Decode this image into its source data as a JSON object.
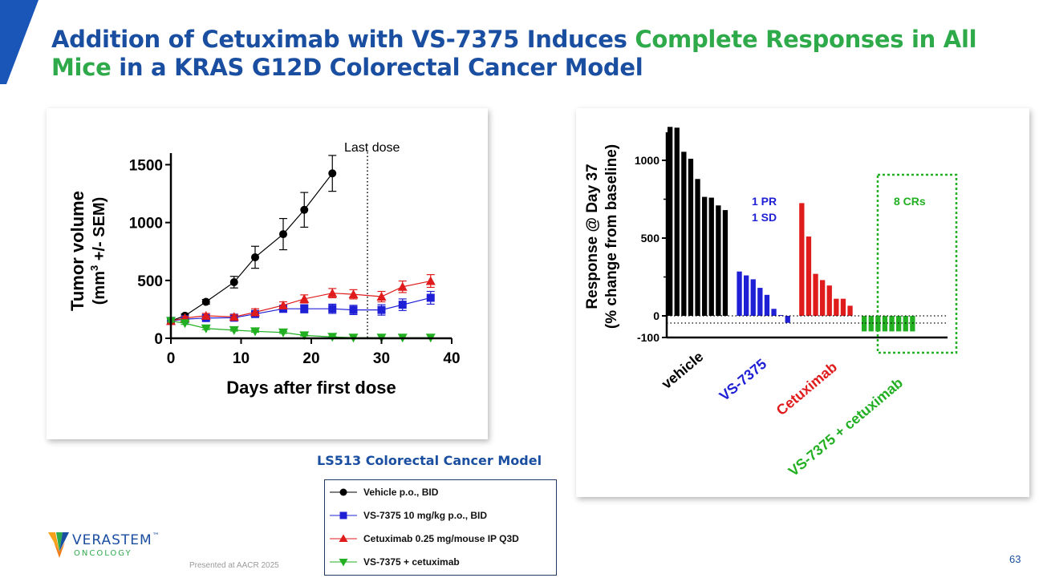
{
  "slide": {
    "title_part1": "Addition of Cetuximab with VS-7375 Induces ",
    "title_highlight1": "Complete Responses in All",
    "title_highlight2": "Mice",
    "title_part2": " in a KRAS G12D Colorectal Cancer Model",
    "model_label": "LS513 Colorectal Cancer Model",
    "footnote": "Presented at AACR 2025",
    "page_number": "63",
    "logo": {
      "name": "VERASTEM",
      "sub": "ONCOLOGY",
      "trademark": "™"
    },
    "colors": {
      "title_blue": "#1a4ea0",
      "title_green": "#2eaa4a"
    }
  },
  "legend": {
    "items": [
      {
        "label": "Vehicle p.o., BID",
        "color": "#000000",
        "marker": "circle"
      },
      {
        "label": "VS-7375 10 mg/kg p.o., BID",
        "color": "#1f1fd6",
        "marker": "square"
      },
      {
        "label": "Cetuximab 0.25 mg/mouse IP Q3D",
        "color": "#e01b1b",
        "marker": "triangle-up"
      },
      {
        "label": "VS-7375 + cetuximab",
        "color": "#22b022",
        "marker": "triangle-down"
      }
    ]
  },
  "chart_data": [
    {
      "type": "line",
      "title": "",
      "xlabel": "Days after first dose",
      "ylabel_line1": "Tumor volume",
      "ylabel_line2": "(mm",
      "ylabel_sup": "3",
      "ylabel_line2_end": " +/- SEM)",
      "xlim": [
        0,
        40
      ],
      "ylim": [
        0,
        1600
      ],
      "xticks": [
        0,
        10,
        20,
        30,
        40
      ],
      "yticks": [
        0,
        500,
        1000,
        1500
      ],
      "annotation": {
        "text": "Last dose",
        "x": 28
      },
      "series": [
        {
          "name": "Vehicle p.o., BID",
          "color": "#000000",
          "marker": "circle",
          "x": [
            0,
            2,
            5,
            9,
            12,
            16,
            19,
            23
          ],
          "y": [
            150,
            195,
            315,
            485,
            700,
            900,
            1110,
            1425
          ],
          "err": [
            15,
            15,
            20,
            50,
            95,
            135,
            150,
            155
          ]
        },
        {
          "name": "VS-7375 10 mg/kg p.o., BID",
          "color": "#1f1fd6",
          "marker": "square",
          "x": [
            0,
            2,
            5,
            9,
            12,
            16,
            19,
            23,
            26,
            30,
            33,
            37
          ],
          "y": [
            150,
            165,
            175,
            178,
            210,
            255,
            255,
            255,
            245,
            245,
            290,
            350
          ],
          "err": [
            10,
            12,
            15,
            18,
            25,
            30,
            35,
            40,
            40,
            45,
            50,
            55
          ]
        },
        {
          "name": "Cetuximab 0.25 mg/mouse IP Q3D",
          "color": "#e01b1b",
          "marker": "triangle-up",
          "x": [
            0,
            2,
            5,
            9,
            12,
            16,
            19,
            23,
            26,
            30,
            33,
            37
          ],
          "y": [
            150,
            175,
            195,
            185,
            225,
            285,
            340,
            390,
            380,
            360,
            445,
            495
          ],
          "err": [
            10,
            15,
            20,
            20,
            30,
            30,
            35,
            40,
            40,
            45,
            50,
            55
          ]
        },
        {
          "name": "VS-7375 + cetuximab",
          "color": "#22b022",
          "marker": "triangle-down",
          "x": [
            0,
            2,
            5,
            9,
            12,
            16,
            19,
            23,
            26,
            30,
            33,
            37
          ],
          "y": [
            150,
            130,
            85,
            70,
            60,
            50,
            25,
            12,
            5,
            5,
            5,
            5
          ],
          "err": [
            10,
            10,
            10,
            8,
            8,
            8,
            5,
            4,
            2,
            2,
            2,
            2
          ]
        }
      ]
    },
    {
      "type": "bar",
      "title": "",
      "ylabel_line1": "Response @ Day 37",
      "ylabel_line2": "(% change from baseline)",
      "ylim": [
        -100,
        1200
      ],
      "yticks": [
        -100,
        0,
        500,
        1000
      ],
      "groups": [
        {
          "name": "vehicle",
          "color": "#000000",
          "values": [
            1215,
            1210,
            1055,
            1010,
            880,
            765,
            760,
            710,
            680
          ]
        },
        {
          "name": "VS-7375",
          "color": "#1f1fd6",
          "values": [
            285,
            260,
            235,
            180,
            135,
            45,
            5,
            -45
          ]
        },
        {
          "name": "Cetuximab",
          "color": "#e01b1b",
          "values": [
            725,
            510,
            270,
            230,
            195,
            110,
            110,
            65
          ]
        },
        {
          "name": "VS-7375 + cetuximab",
          "color": "#22b022",
          "values": [
            -100,
            -100,
            -100,
            -100,
            -100,
            -100,
            -100,
            -100
          ]
        }
      ],
      "annotations": [
        {
          "text": "1 PR",
          "color": "#1f1fd6"
        },
        {
          "text": "1 SD",
          "color": "#1f1fd6"
        },
        {
          "text": "8 CRs",
          "color": "#22b022"
        }
      ]
    }
  ]
}
